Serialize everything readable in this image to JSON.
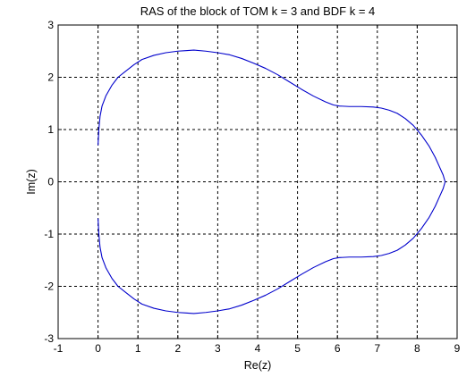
{
  "chart_data": {
    "type": "line",
    "title": "RAS of the block of TOM k = 3 and BDF k = 4",
    "xlabel": "Re(z)",
    "ylabel": "Im(z)",
    "xlim": [
      -1,
      9
    ],
    "ylim": [
      -3,
      3
    ],
    "xticks": [
      -1,
      0,
      1,
      2,
      3,
      4,
      5,
      6,
      7,
      8,
      9
    ],
    "yticks": [
      -3,
      -2,
      -1,
      0,
      1,
      2,
      3
    ],
    "grid": true,
    "grid_style": "dashed",
    "line_color": "#0000cc",
    "series": [
      {
        "values_note": "boundary curve, upper half (lower half is mirror image)",
        "x": [
          0.0,
          0.02,
          0.05,
          0.1,
          0.2,
          0.35,
          0.5,
          0.7,
          0.9,
          1.1,
          1.4,
          1.7,
          2.0,
          2.2,
          2.4,
          2.7,
          3.0,
          3.3,
          3.6,
          3.9,
          4.2,
          4.5,
          4.8,
          5.1,
          5.4,
          5.7,
          5.9,
          6.05,
          6.3,
          6.6,
          6.9,
          7.1,
          7.3,
          7.5,
          7.7,
          7.9,
          8.1,
          8.3,
          8.45,
          8.55,
          8.65,
          8.7
        ],
        "y": [
          0.7,
          1.0,
          1.25,
          1.45,
          1.65,
          1.85,
          2.0,
          2.12,
          2.24,
          2.34,
          2.42,
          2.47,
          2.5,
          2.51,
          2.52,
          2.5,
          2.47,
          2.43,
          2.36,
          2.27,
          2.17,
          2.05,
          1.91,
          1.77,
          1.64,
          1.53,
          1.47,
          1.45,
          1.44,
          1.44,
          1.43,
          1.41,
          1.37,
          1.31,
          1.21,
          1.08,
          0.9,
          0.68,
          0.47,
          0.3,
          0.13,
          0.0
        ]
      }
    ]
  }
}
